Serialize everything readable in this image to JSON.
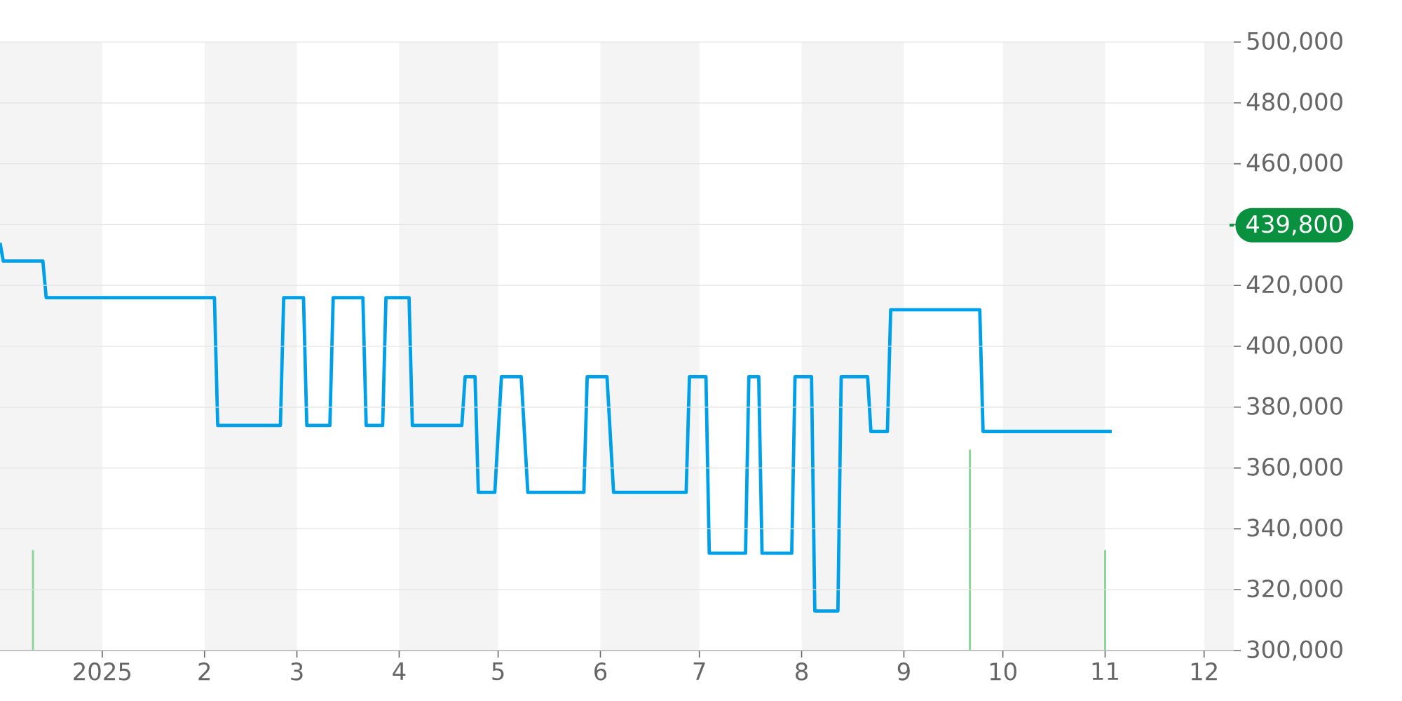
{
  "chart_data": {
    "type": "line",
    "x": [
      "2024-12-01",
      "2024-12-02",
      "2024-12-14",
      "2024-12-15",
      "2025-02-04",
      "2025-02-05",
      "2025-02-24",
      "2025-02-25",
      "2025-03-03",
      "2025-03-04",
      "2025-03-11",
      "2025-03-12",
      "2025-03-21",
      "2025-03-22",
      "2025-03-27",
      "2025-03-28",
      "2025-04-04",
      "2025-04-05",
      "2025-04-20",
      "2025-04-21",
      "2025-04-24",
      "2025-04-25",
      "2025-04-30",
      "2025-05-02",
      "2025-05-08",
      "2025-05-10",
      "2025-05-27",
      "2025-05-28",
      "2025-06-03",
      "2025-06-05",
      "2025-06-27",
      "2025-06-28",
      "2025-07-03",
      "2025-07-04",
      "2025-07-15",
      "2025-07-16",
      "2025-07-19",
      "2025-07-20",
      "2025-07-29",
      "2025-07-30",
      "2025-08-04",
      "2025-08-05",
      "2025-08-12",
      "2025-08-13",
      "2025-08-21",
      "2025-08-22",
      "2025-08-27",
      "2025-08-28",
      "2025-09-24",
      "2025-09-25",
      "2025-11-03"
    ],
    "series": [
      {
        "color": "#00a0e9",
        "values": [
          434000,
          428000,
          428000,
          416000,
          416000,
          374000,
          374000,
          416000,
          416000,
          374000,
          374000,
          416000,
          416000,
          374000,
          374000,
          416000,
          416000,
          374000,
          374000,
          390000,
          390000,
          352000,
          352000,
          390000,
          390000,
          352000,
          352000,
          390000,
          390000,
          352000,
          352000,
          390000,
          390000,
          332000,
          332000,
          390000,
          390000,
          332000,
          332000,
          390000,
          390000,
          313000,
          313000,
          390000,
          390000,
          372000,
          372000,
          412000,
          412000,
          372000,
          372000
        ]
      },
      {
        "type": "bar",
        "color": "#8fd49a",
        "x": [
          "2024-12-11",
          "2025-09-21",
          "2025-11-01"
        ],
        "values": [
          333000,
          366000,
          333000
        ]
      }
    ],
    "xlim": [
      "2024-12-01",
      "2025-12-10"
    ],
    "xticks": [
      {
        "value": "2025-01-01",
        "label": "2025"
      },
      {
        "value": "2025-02-01",
        "label": "2"
      },
      {
        "value": "2025-03-01",
        "label": "3"
      },
      {
        "value": "2025-04-01",
        "label": "4"
      },
      {
        "value": "2025-05-01",
        "label": "5"
      },
      {
        "value": "2025-06-01",
        "label": "6"
      },
      {
        "value": "2025-07-01",
        "label": "7"
      },
      {
        "value": "2025-08-01",
        "label": "8"
      },
      {
        "value": "2025-09-01",
        "label": "9"
      },
      {
        "value": "2025-10-01",
        "label": "10"
      },
      {
        "value": "2025-11-01",
        "label": "11"
      },
      {
        "value": "2025-12-01",
        "label": "12"
      }
    ],
    "ylim": [
      300000,
      500000
    ],
    "yticks": [
      {
        "value": 300000,
        "label": "300,000"
      },
      {
        "value": 320000,
        "label": "320,000"
      },
      {
        "value": 340000,
        "label": "340,000"
      },
      {
        "value": 360000,
        "label": "360,000"
      },
      {
        "value": 380000,
        "label": "380,000"
      },
      {
        "value": 400000,
        "label": "400,000"
      },
      {
        "value": 420000,
        "label": "420,000"
      },
      {
        "value": 440000,
        "label": null
      },
      {
        "value": 460000,
        "label": "460,000"
      },
      {
        "value": 480000,
        "label": "480,000"
      },
      {
        "value": 500000,
        "label": "500,000"
      }
    ],
    "grid": "y",
    "marker": "none",
    "line_style": "solid",
    "bands": [
      {
        "axis": "x",
        "from": "2024-12-01",
        "to": "2025-01-01",
        "color": "#f4f4f4"
      },
      {
        "axis": "x",
        "from": "2025-02-01",
        "to": "2025-03-01",
        "color": "#f4f4f4"
      },
      {
        "axis": "x",
        "from": "2025-04-01",
        "to": "2025-05-01",
        "color": "#f4f4f4"
      },
      {
        "axis": "x",
        "from": "2025-06-01",
        "to": "2025-07-01",
        "color": "#f4f4f4"
      },
      {
        "axis": "x",
        "from": "2025-08-01",
        "to": "2025-09-01",
        "color": "#f4f4f4"
      },
      {
        "axis": "x",
        "from": "2025-10-01",
        "to": "2025-11-01",
        "color": "#f4f4f4"
      },
      {
        "axis": "x",
        "from": "2025-12-01",
        "to": "2025-12-10",
        "color": "#f4f4f4"
      }
    ],
    "ref_lines": [
      {
        "axis": "y",
        "value": 439800,
        "label": "439,800",
        "color": "#0a9140"
      }
    ]
  }
}
